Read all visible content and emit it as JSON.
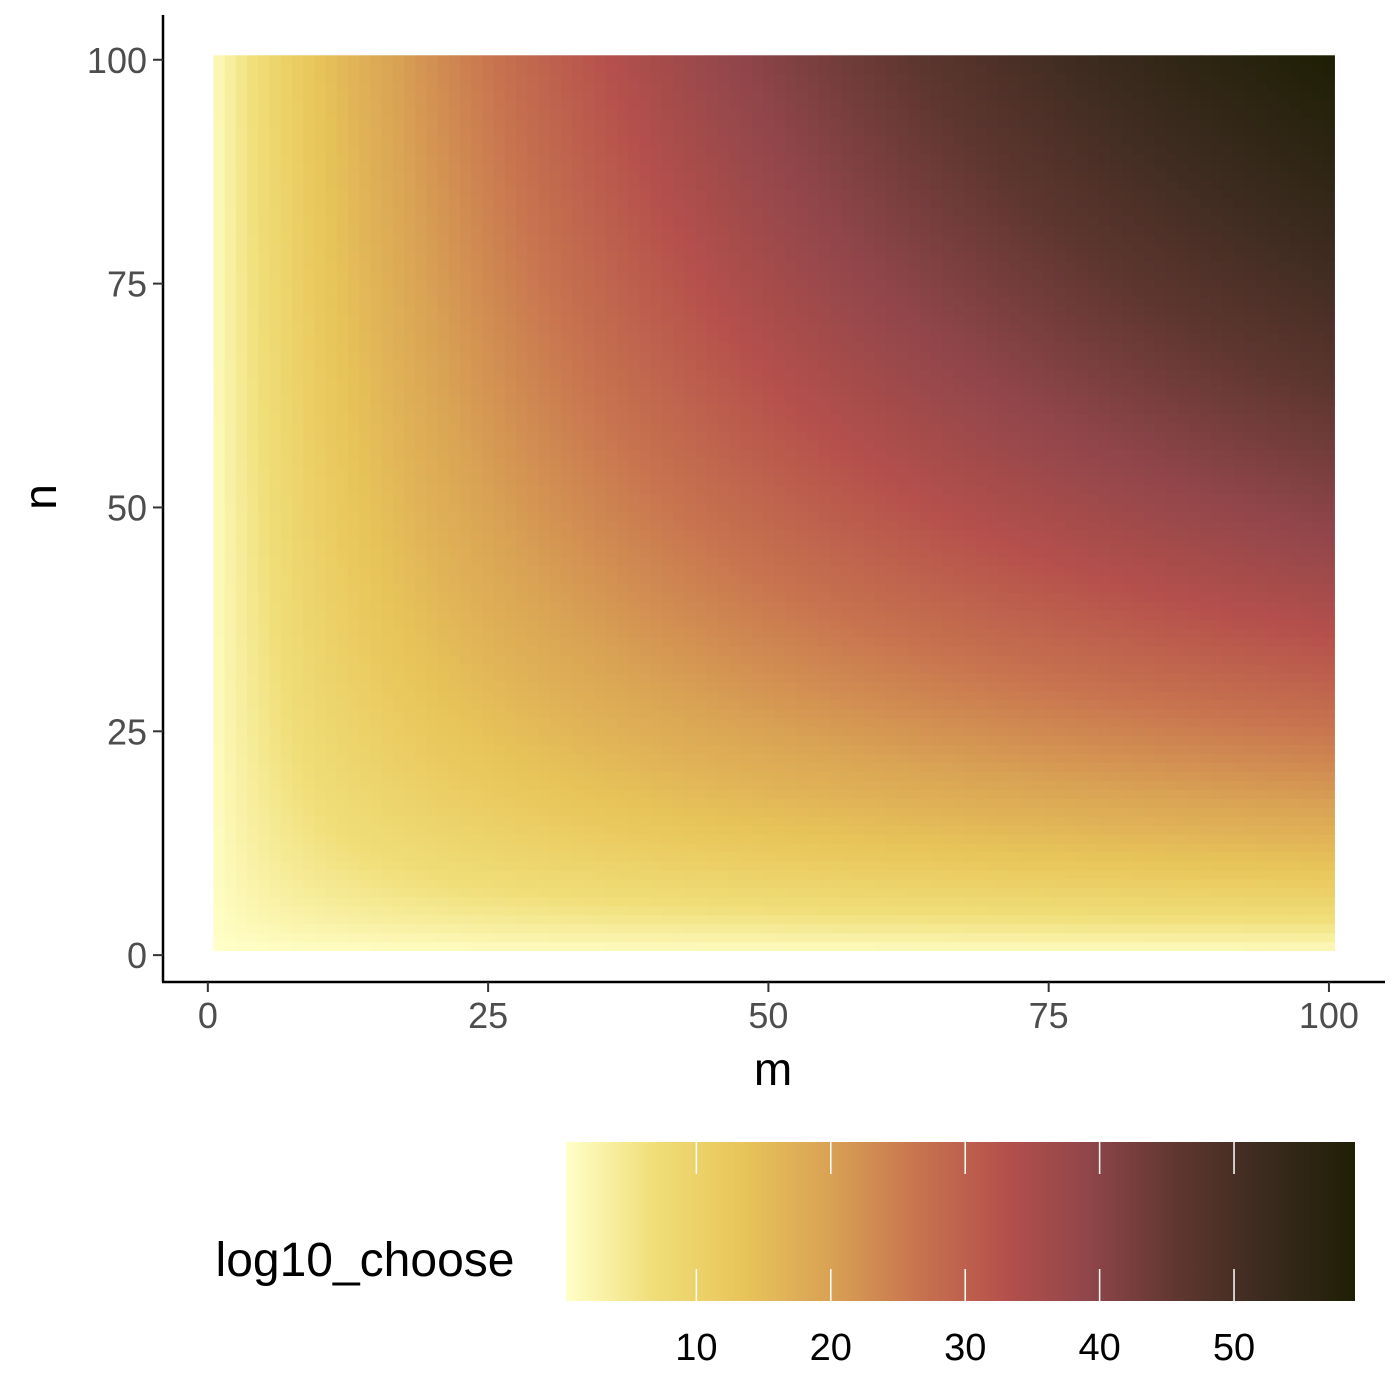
{
  "chart_data": {
    "type": "heatmap",
    "title": "",
    "xlabel": "m",
    "ylabel": "n",
    "x_range": [
      1,
      100
    ],
    "y_range": [
      1,
      100
    ],
    "xlim": [
      -4,
      105
    ],
    "ylim": [
      -3,
      105
    ],
    "x_ticks": [
      0,
      25,
      50,
      75,
      100
    ],
    "y_ticks": [
      0,
      25,
      50,
      75,
      100
    ],
    "value_function": "log10(choose(m + n, n))",
    "grid": false,
    "legend": {
      "title": "log10_choose",
      "position": "bottom",
      "range": [
        0.3,
        59.0
      ],
      "breaks": [
        10,
        20,
        30,
        40,
        50
      ]
    },
    "colormap": [
      "#FFFFC8",
      "#F0DE78",
      "#E8C55A",
      "#D9A254",
      "#C8744F",
      "#B5504C",
      "#8E454A",
      "#5E3630",
      "#3A2A1E",
      "#1F1F05"
    ]
  }
}
